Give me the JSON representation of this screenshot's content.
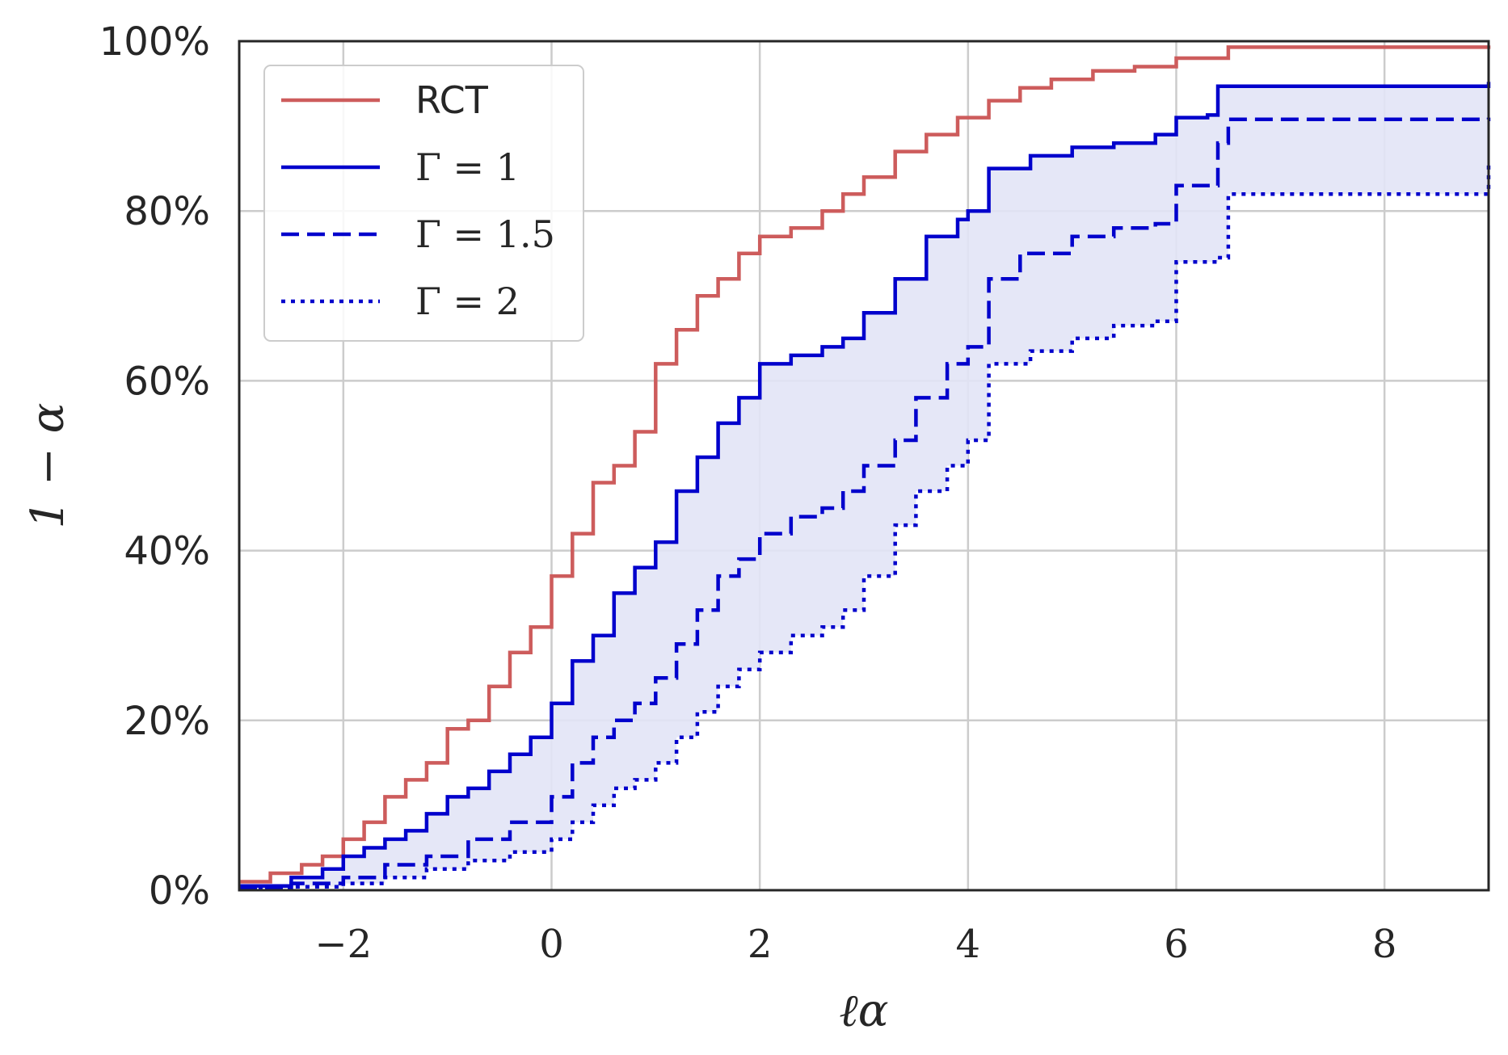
{
  "chart_data": {
    "type": "line",
    "title": "",
    "xlabel": "ℓα",
    "ylabel": "1 − α",
    "xlim": [
      -3,
      9
    ],
    "ylim": [
      0,
      100
    ],
    "xticks": [
      -2,
      0,
      2,
      4,
      6,
      8
    ],
    "xtick_labels": [
      "−2",
      "0",
      "2",
      "4",
      "6",
      "8"
    ],
    "yticks": [
      0,
      20,
      40,
      60,
      80,
      100
    ],
    "ytick_labels": [
      "0%",
      "20%",
      "40%",
      "60%",
      "80%",
      "100%"
    ],
    "grid": true,
    "legend_position": "top-left",
    "colors": {
      "rct": "#cd5c5c",
      "gamma": "#0000cc",
      "band": "#e2e4f6",
      "grid": "#cccccc",
      "axes": "#262626"
    },
    "shaded_band": {
      "between": [
        "Γ = 1",
        "Γ = 2"
      ]
    },
    "series": [
      {
        "name": "RCT",
        "style": "solid",
        "color": "#cd5c5c",
        "x": [
          -3.0,
          -2.7,
          -2.4,
          -2.2,
          -2.0,
          -1.8,
          -1.6,
          -1.4,
          -1.2,
          -1.0,
          -0.8,
          -0.6,
          -0.4,
          -0.2,
          0.0,
          0.2,
          0.4,
          0.6,
          0.8,
          1.0,
          1.2,
          1.4,
          1.6,
          1.8,
          2.0,
          2.3,
          2.6,
          2.8,
          3.0,
          3.3,
          3.6,
          3.9,
          4.2,
          4.5,
          4.8,
          5.2,
          5.6,
          6.0,
          6.5,
          9.0
        ],
        "y": [
          1,
          2,
          3,
          4,
          6,
          8,
          11,
          13,
          15,
          19,
          20,
          24,
          28,
          31,
          37,
          42,
          48,
          50,
          54,
          62,
          66,
          70,
          72,
          75,
          77,
          78,
          80,
          82,
          84,
          87,
          89,
          91,
          93,
          94.5,
          95.5,
          96.5,
          97,
          98,
          99.3,
          99.5
        ]
      },
      {
        "name": "Γ = 1",
        "style": "solid",
        "color": "#0000cc",
        "x": [
          -3.0,
          -2.5,
          -2.2,
          -2.0,
          -1.8,
          -1.6,
          -1.4,
          -1.2,
          -1.0,
          -0.8,
          -0.6,
          -0.4,
          -0.2,
          0.0,
          0.2,
          0.4,
          0.6,
          0.8,
          1.0,
          1.2,
          1.4,
          1.6,
          1.8,
          2.0,
          2.3,
          2.6,
          2.8,
          3.0,
          3.3,
          3.6,
          3.9,
          4.0,
          4.2,
          4.6,
          5.0,
          5.4,
          5.8,
          6.0,
          6.3,
          6.4,
          9.0
        ],
        "y": [
          0.5,
          1.5,
          2.5,
          4,
          5,
          6,
          7,
          9,
          11,
          12,
          14,
          16,
          18,
          22,
          27,
          30,
          35,
          38,
          41,
          47,
          51,
          55,
          58,
          62,
          63,
          64,
          65,
          68,
          72,
          77,
          79,
          80,
          85,
          86.5,
          87.5,
          88,
          89,
          91,
          91.3,
          94.7,
          95.2
        ]
      },
      {
        "name": "Γ = 1.5",
        "style": "dashed",
        "color": "#0000cc",
        "x": [
          -3.0,
          -2.5,
          -2.0,
          -1.6,
          -1.2,
          -0.8,
          -0.4,
          0.0,
          0.2,
          0.4,
          0.6,
          0.8,
          1.0,
          1.2,
          1.4,
          1.6,
          1.8,
          2.0,
          2.3,
          2.6,
          2.8,
          3.0,
          3.3,
          3.5,
          3.8,
          4.0,
          4.2,
          4.5,
          5.0,
          5.4,
          5.8,
          6.0,
          6.4,
          6.5,
          9.0
        ],
        "y": [
          0.3,
          0.8,
          1.5,
          3,
          4,
          6,
          8,
          11,
          15,
          18,
          20,
          22,
          25,
          29,
          33,
          37,
          39,
          42,
          44,
          45,
          47,
          50,
          53,
          58,
          62,
          64,
          72,
          75,
          77,
          78,
          78.5,
          83,
          88,
          90.8,
          91.0
        ]
      },
      {
        "name": "Γ = 2",
        "style": "dotted",
        "color": "#0000cc",
        "x": [
          -3.0,
          -2.5,
          -2.0,
          -1.6,
          -1.2,
          -0.8,
          -0.4,
          0.0,
          0.2,
          0.4,
          0.6,
          0.8,
          1.0,
          1.2,
          1.4,
          1.6,
          1.8,
          2.0,
          2.3,
          2.6,
          2.8,
          3.0,
          3.3,
          3.5,
          3.8,
          4.0,
          4.2,
          4.6,
          5.0,
          5.4,
          5.8,
          6.0,
          6.4,
          6.5,
          9.0
        ],
        "y": [
          0.2,
          0.4,
          0.8,
          1.5,
          2.5,
          3.5,
          4.5,
          6,
          8,
          10,
          12,
          13,
          15,
          18,
          21,
          24,
          26,
          28,
          30,
          31,
          33,
          37,
          43,
          47,
          50,
          53,
          62,
          63.5,
          65,
          66.5,
          67,
          74,
          74.5,
          82,
          85.5
        ]
      }
    ],
    "legend": [
      "RCT",
      "Γ = 1",
      "Γ = 1.5",
      "Γ = 2"
    ]
  }
}
